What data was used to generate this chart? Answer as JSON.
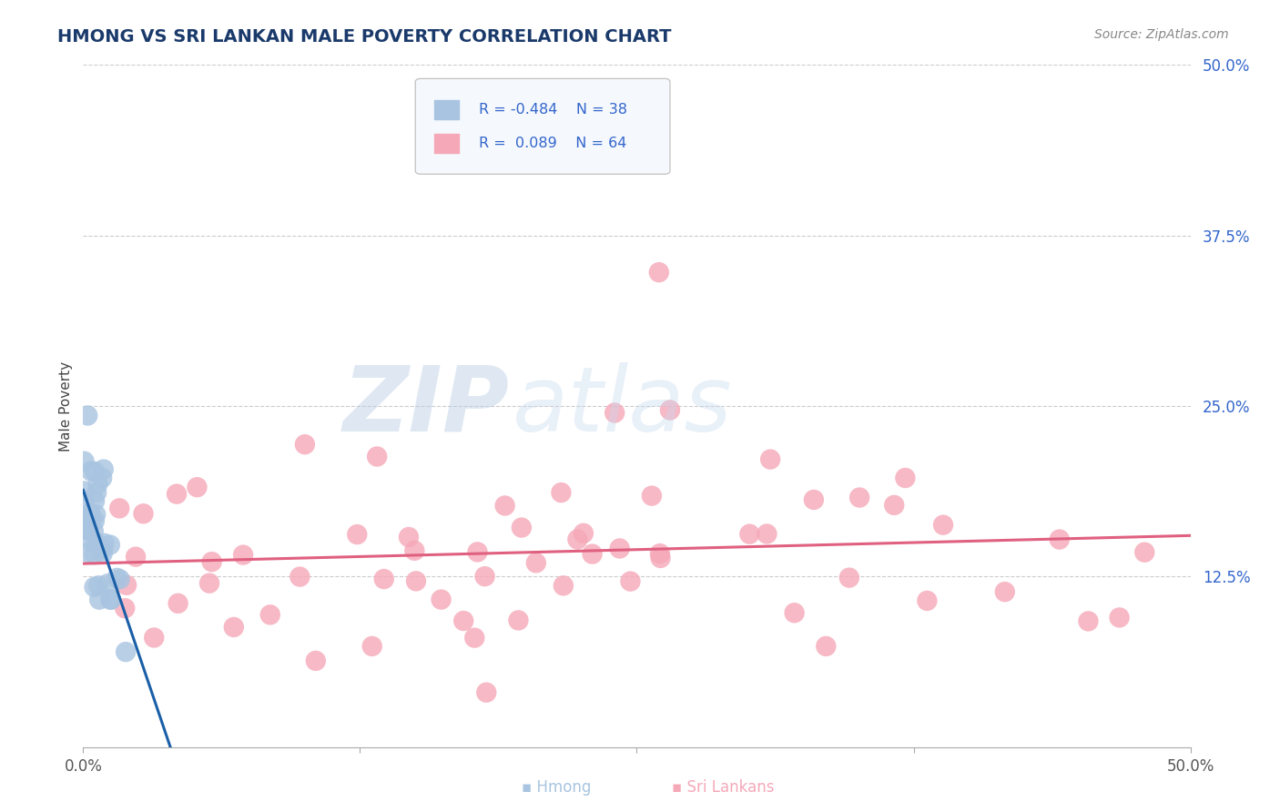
{
  "title": "HMONG VS SRI LANKAN MALE POVERTY CORRELATION CHART",
  "source": "Source: ZipAtlas.com",
  "ylabel": "Male Poverty",
  "xmin": 0.0,
  "xmax": 0.5,
  "ymin": 0.0,
  "ymax": 0.5,
  "hmong_color": "#a8c4e0",
  "hmong_edge_color": "#6699cc",
  "hmong_line_color": "#1a5fa8",
  "srilankan_color": "#f5a8b8",
  "srilankan_edge_color": "#dd8899",
  "srilankan_line_color": "#e06080",
  "text_color": "#3366cc",
  "background_color": "#ffffff",
  "grid_color": "#cccccc",
  "title_color": "#1a3a6b",
  "source_color": "#888888",
  "watermark_zip_color": "#b8cce0",
  "watermark_atlas_color": "#c8d8ec",
  "hmong_N": 38,
  "srilankan_N": 64,
  "hmong_R": -0.484,
  "srilankan_R": 0.089
}
